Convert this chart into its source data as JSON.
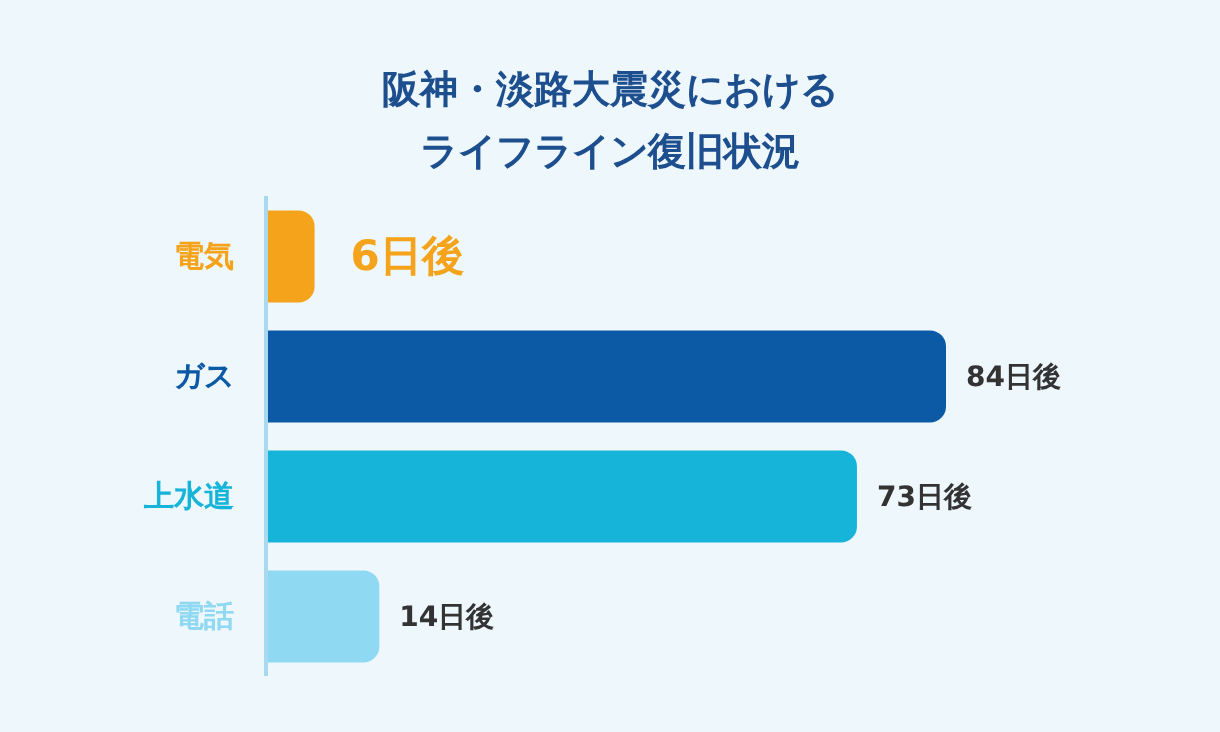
{
  "chart_data": {
    "type": "bar",
    "orientation": "horizontal",
    "title": "阪神・淡路大震災におけるライフライン復旧状況",
    "categories": [
      "電気",
      "ガス",
      "上水道",
      "電話"
    ],
    "values": [
      6,
      84,
      73,
      14
    ],
    "colors": [
      "#f5a31b",
      "#0c5aa6",
      "#17b4d9",
      "#8fd9f3"
    ],
    "value_labels": [
      "6日後",
      "84日後",
      "73日後",
      "14日後"
    ],
    "tick_labels": "y"
  }
}
